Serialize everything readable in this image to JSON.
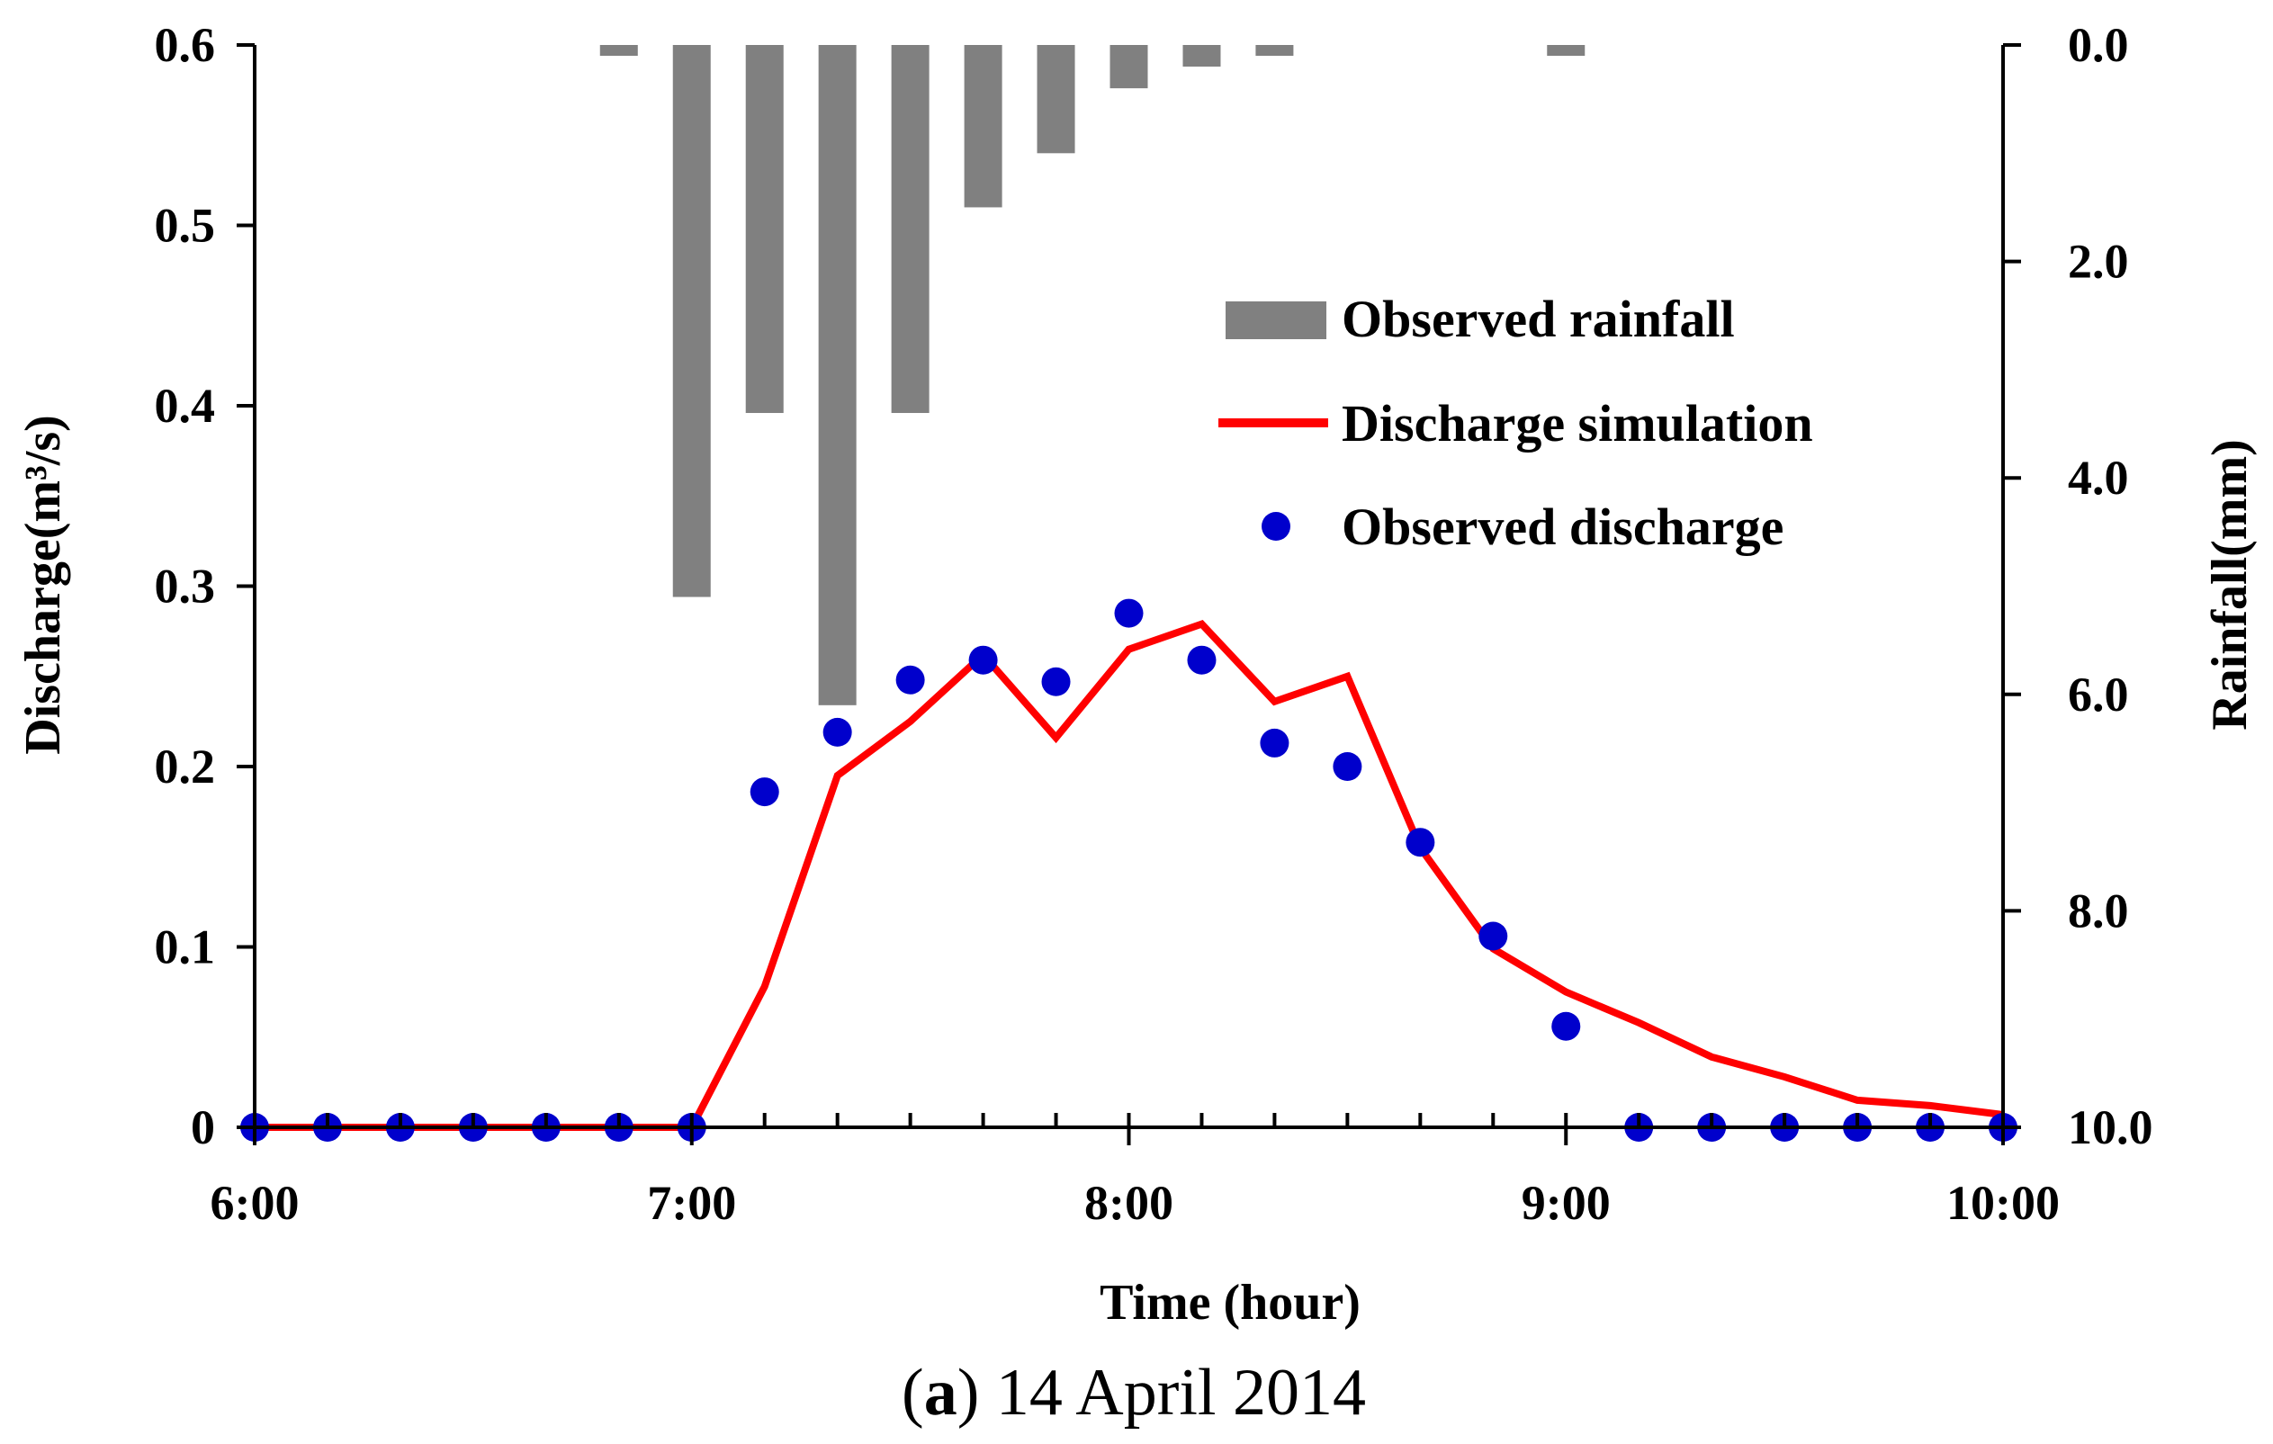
{
  "chart_data": {
    "type": "bar+line+scatter",
    "caption": {
      "letter": "a",
      "open": "(",
      "close": ")",
      "text": " 14 April 2014"
    },
    "xlabel": "Time (hour)",
    "ylabel_left": "Discharge(m³/s)",
    "ylabel_right": "Rainfall(mm)",
    "x_range_hours": [
      6.0,
      10.0
    ],
    "x_ticks": [
      {
        "value": 6.0,
        "label": "6:00"
      },
      {
        "value": 7.0,
        "label": "7:00"
      },
      {
        "value": 8.0,
        "label": "8:00"
      },
      {
        "value": 9.0,
        "label": "9:00"
      },
      {
        "value": 10.0,
        "label": "10:00"
      }
    ],
    "x_minor_step_hours": 0.1666667,
    "y_left_range": [
      0,
      0.6
    ],
    "y_left_ticks": [
      {
        "value": 0,
        "label": "0"
      },
      {
        "value": 0.1,
        "label": "0.1"
      },
      {
        "value": 0.2,
        "label": "0.2"
      },
      {
        "value": 0.3,
        "label": "0.3"
      },
      {
        "value": 0.4,
        "label": "0.4"
      },
      {
        "value": 0.5,
        "label": "0.5"
      },
      {
        "value": 0.6,
        "label": "0.6"
      }
    ],
    "y_right_range": [
      0,
      10
    ],
    "y_right_inverted": true,
    "y_right_ticks": [
      {
        "value": 0,
        "label": "0.0"
      },
      {
        "value": 2,
        "label": "2.0"
      },
      {
        "value": 4,
        "label": "4.0"
      },
      {
        "value": 6,
        "label": "6.0"
      },
      {
        "value": 8,
        "label": "8.0"
      },
      {
        "value": 10,
        "label": "10.0"
      }
    ],
    "legend": [
      {
        "key": "rainfall",
        "label": "Observed rainfall"
      },
      {
        "key": "simulation",
        "label": "Discharge simulation"
      },
      {
        "key": "observed",
        "label": "Observed discharge"
      }
    ],
    "colors": {
      "rainfall": "#808080",
      "simulation": "#ff0000",
      "observed": "#0000cc"
    },
    "rainfall": {
      "x": [
        6.8333,
        7.0,
        7.1667,
        7.3333,
        7.5,
        7.6667,
        7.8333,
        8.0,
        8.1667,
        8.3333,
        9.0
      ],
      "values": [
        0.1,
        5.1,
        3.4,
        6.1,
        3.4,
        1.5,
        1.0,
        0.4,
        0.2,
        0.1,
        0.1
      ]
    },
    "simulation": {
      "x": [
        6.0,
        6.1667,
        6.3333,
        6.5,
        6.6667,
        6.8333,
        7.0,
        7.1667,
        7.3333,
        7.5,
        7.6667,
        7.8333,
        8.0,
        8.1667,
        8.3333,
        8.5,
        8.6667,
        8.8333,
        9.0,
        9.1667,
        9.3333,
        9.5,
        9.6667,
        9.8333,
        10.0
      ],
      "values": [
        0,
        0,
        0,
        0,
        0,
        0,
        0,
        0.078,
        0.195,
        0.225,
        0.262,
        0.216,
        0.265,
        0.279,
        0.236,
        0.25,
        0.155,
        0.099,
        0.075,
        0.058,
        0.039,
        0.028,
        0.015,
        0.012,
        0.007
      ]
    },
    "observed": {
      "x": [
        6.0,
        6.1667,
        6.3333,
        6.5,
        6.6667,
        6.8333,
        7.0,
        7.1667,
        7.3333,
        7.5,
        7.6667,
        7.8333,
        8.0,
        8.1667,
        8.3333,
        8.5,
        8.6667,
        8.8333,
        9.0,
        9.1667,
        9.3333,
        9.5,
        9.6667,
        9.8333,
        10.0
      ],
      "values": [
        0,
        0,
        0,
        0,
        0,
        0,
        0,
        0.186,
        0.219,
        0.248,
        0.259,
        0.247,
        0.285,
        0.259,
        0.213,
        0.2,
        0.158,
        0.106,
        0.056,
        0,
        0,
        0,
        0,
        0,
        0
      ]
    }
  }
}
